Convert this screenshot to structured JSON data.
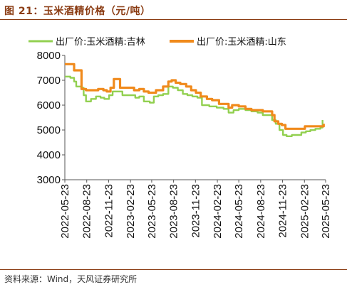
{
  "header": {
    "title": "图 21：玉米酒精价格（元/吨）"
  },
  "footer": {
    "source": "资料来源：Wind，天风证券研究所"
  },
  "chart_data": {
    "type": "line",
    "title": "图 21：玉米酒精价格（元/吨）",
    "ylim": [
      3000,
      8000
    ],
    "yticks": [
      "8000",
      "7000",
      "6000",
      "5000",
      "4000",
      "3000"
    ],
    "xlim": [
      "2022-05-23",
      "2025-05-23"
    ],
    "xticks": [
      "2022-05-23",
      "2022-08-23",
      "2022-11-23",
      "2023-02-23",
      "2023-05-23",
      "2023-08-23",
      "2023-11-23",
      "2024-02-23",
      "2024-05-23",
      "2024-08-23",
      "2024-11-23",
      "2025-02-23",
      "2025-05-23"
    ],
    "grid": false,
    "legend_position": "top",
    "series": [
      {
        "name": "出厂价:玉米酒精:吉林",
        "color": "#92d050",
        "points": [
          [
            "2022-05-23",
            7150
          ],
          [
            "2022-06-15",
            7100
          ],
          [
            "2022-07-01",
            6950
          ],
          [
            "2022-07-10",
            6750
          ],
          [
            "2022-08-01",
            6700
          ],
          [
            "2022-08-10",
            6400
          ],
          [
            "2022-08-20",
            6150
          ],
          [
            "2022-09-10",
            6250
          ],
          [
            "2022-10-01",
            6350
          ],
          [
            "2022-10-20",
            6300
          ],
          [
            "2022-11-05",
            6250
          ],
          [
            "2022-11-25",
            6400
          ],
          [
            "2022-12-10",
            6550
          ],
          [
            "2023-01-05",
            6550
          ],
          [
            "2023-01-20",
            6400
          ],
          [
            "2023-02-20",
            6400
          ],
          [
            "2023-03-15",
            6300
          ],
          [
            "2023-04-01",
            6350
          ],
          [
            "2023-04-20",
            6150
          ],
          [
            "2023-05-15",
            6100
          ],
          [
            "2023-06-01",
            6350
          ],
          [
            "2023-06-20",
            6400
          ],
          [
            "2023-07-10",
            6450
          ],
          [
            "2023-08-01",
            6750
          ],
          [
            "2023-08-20",
            6700
          ],
          [
            "2023-09-10",
            6600
          ],
          [
            "2023-10-01",
            6450
          ],
          [
            "2023-10-20",
            6400
          ],
          [
            "2023-11-10",
            6350
          ],
          [
            "2023-12-01",
            6300
          ],
          [
            "2023-12-20",
            6000
          ],
          [
            "2024-01-20",
            5950
          ],
          [
            "2024-02-20",
            5900
          ],
          [
            "2024-03-20",
            5850
          ],
          [
            "2024-04-10",
            5700
          ],
          [
            "2024-05-01",
            5800
          ],
          [
            "2024-05-23",
            5850
          ],
          [
            "2024-06-20",
            5800
          ],
          [
            "2024-07-15",
            5750
          ],
          [
            "2024-08-10",
            5700
          ],
          [
            "2024-09-01",
            5600
          ],
          [
            "2024-09-20",
            5600
          ],
          [
            "2024-10-10",
            5400
          ],
          [
            "2024-10-25",
            5250
          ],
          [
            "2024-11-10",
            5000
          ],
          [
            "2024-11-25",
            4800
          ],
          [
            "2024-12-10",
            4750
          ],
          [
            "2025-01-01",
            4800
          ],
          [
            "2025-01-20",
            4800
          ],
          [
            "2025-02-10",
            4900
          ],
          [
            "2025-03-01",
            4950
          ],
          [
            "2025-03-20",
            5000
          ],
          [
            "2025-04-10",
            5050
          ],
          [
            "2025-05-01",
            5100
          ],
          [
            "2025-05-10",
            5400
          ]
        ]
      },
      {
        "name": "出厂价:玉米酒精:山东",
        "color": "#f08a1c",
        "points": [
          [
            "2022-05-23",
            7650
          ],
          [
            "2022-06-20",
            7650
          ],
          [
            "2022-07-01",
            7400
          ],
          [
            "2022-07-20",
            7400
          ],
          [
            "2022-08-01",
            6650
          ],
          [
            "2022-08-20",
            6600
          ],
          [
            "2022-09-15",
            6600
          ],
          [
            "2022-10-10",
            6650
          ],
          [
            "2022-11-01",
            6600
          ],
          [
            "2022-11-15",
            6550
          ],
          [
            "2022-12-01",
            6700
          ],
          [
            "2022-12-15",
            7050
          ],
          [
            "2023-01-10",
            6700
          ],
          [
            "2023-02-10",
            6700
          ],
          [
            "2023-03-10",
            6600
          ],
          [
            "2023-04-01",
            6650
          ],
          [
            "2023-04-20",
            6550
          ],
          [
            "2023-05-10",
            6500
          ],
          [
            "2023-06-10",
            6600
          ],
          [
            "2023-06-25",
            6600
          ],
          [
            "2023-07-10",
            6750
          ],
          [
            "2023-08-01",
            6950
          ],
          [
            "2023-08-15",
            7000
          ],
          [
            "2023-09-01",
            6900
          ],
          [
            "2023-09-20",
            6850
          ],
          [
            "2023-10-15",
            6750
          ],
          [
            "2023-11-05",
            6600
          ],
          [
            "2023-11-25",
            6500
          ],
          [
            "2023-12-15",
            6350
          ],
          [
            "2024-01-10",
            6250
          ],
          [
            "2024-02-01",
            6200
          ],
          [
            "2024-03-01",
            6050
          ],
          [
            "2024-03-20",
            6050
          ],
          [
            "2024-04-10",
            5900
          ],
          [
            "2024-04-25",
            6000
          ],
          [
            "2024-05-23",
            5950
          ],
          [
            "2024-06-20",
            5850
          ],
          [
            "2024-07-15",
            5800
          ],
          [
            "2024-08-01",
            5800
          ],
          [
            "2024-09-01",
            5750
          ],
          [
            "2024-09-20",
            5750
          ],
          [
            "2024-10-10",
            5600
          ],
          [
            "2024-10-20",
            5350
          ],
          [
            "2024-11-05",
            5250
          ],
          [
            "2024-11-20",
            5200
          ],
          [
            "2024-12-05",
            5050
          ],
          [
            "2025-01-10",
            5050
          ],
          [
            "2025-02-10",
            5050
          ],
          [
            "2025-02-25",
            5150
          ],
          [
            "2025-04-10",
            5150
          ],
          [
            "2025-05-01",
            5150
          ],
          [
            "2025-05-15",
            5250
          ]
        ]
      }
    ]
  }
}
